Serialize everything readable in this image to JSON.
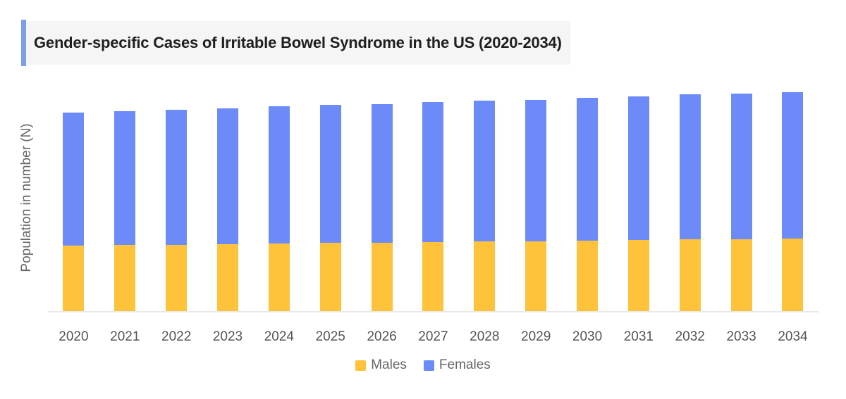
{
  "header": {
    "title": "Gender-specific Cases of Irritable Bowel Syndrome in the US (2020-2034)",
    "accent_color": "#7C9FE9",
    "banner_background": "#F5F5F5",
    "title_color": "#1F1F1F"
  },
  "chart_data": {
    "type": "bar",
    "stacked": true,
    "title": "Gender-specific Cases of Irritable Bowel Syndrome in the US (2020-2034)",
    "xlabel": "",
    "ylabel": "Population in number (N)",
    "categories": [
      "2020",
      "2021",
      "2022",
      "2023",
      "2024",
      "2025",
      "2026",
      "2027",
      "2028",
      "2029",
      "2030",
      "2031",
      "2032",
      "2033",
      "2034"
    ],
    "series": [
      {
        "name": "Males",
        "color": "#FFC23B",
        "values": [
          93,
          94,
          94,
          95,
          96,
          97,
          97,
          98,
          99,
          99,
          100,
          101,
          102,
          102,
          103
        ]
      },
      {
        "name": "Females",
        "color": "#6C8BF8",
        "values": [
          189,
          190,
          192,
          193,
          195,
          196,
          197,
          199,
          200,
          201,
          203,
          204,
          206,
          207,
          208
        ]
      }
    ],
    "ylim": [
      0,
      320
    ],
    "grid": false,
    "y_tick_labels_shown": false,
    "legend_position": "bottom",
    "axis_line_color": "#E8E8E8",
    "tick_label_color": "#555555"
  }
}
